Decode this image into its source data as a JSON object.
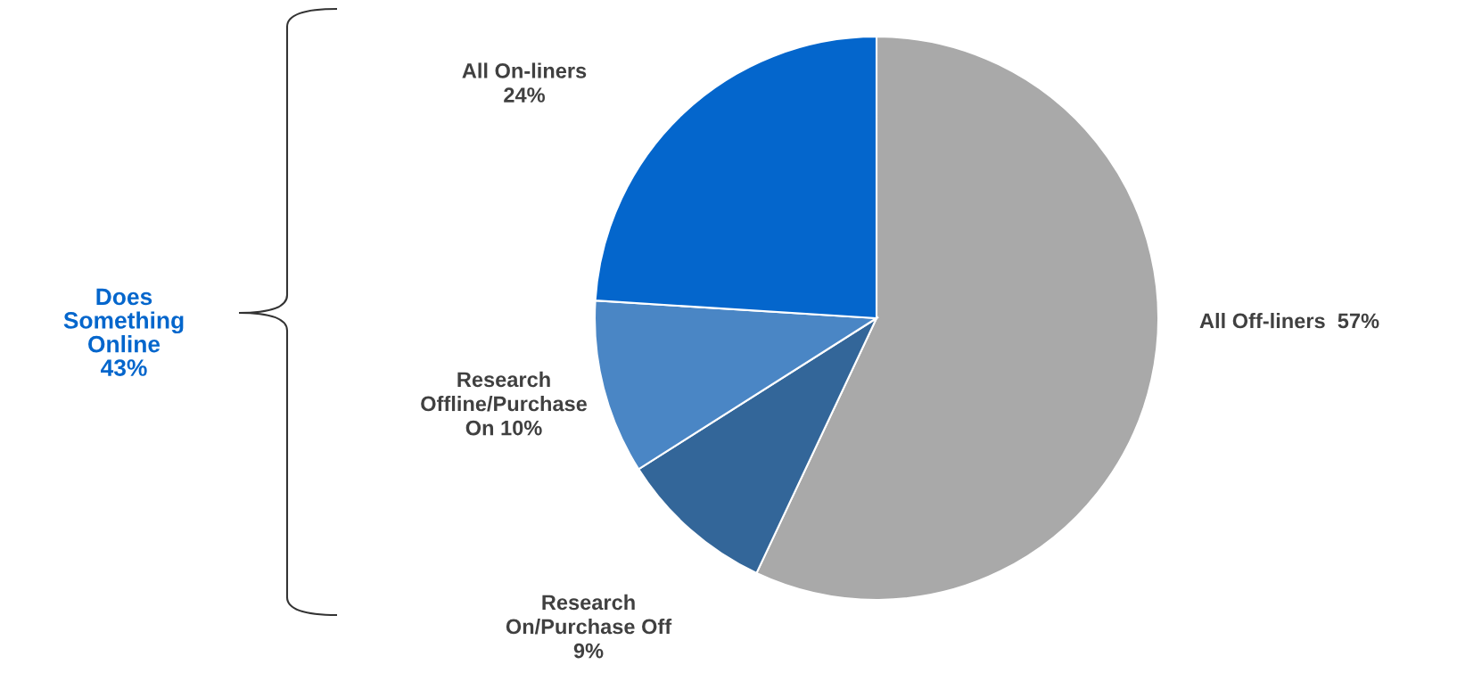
{
  "chart_data": {
    "type": "pie",
    "categories": [
      "All Off-liners",
      "Research On/Purchase Off",
      "Research Offline/Purchase On",
      "All On-liners"
    ],
    "values": [
      57,
      9,
      10,
      24
    ],
    "colors": [
      "#a9a9a9",
      "#336699",
      "#4a86c5",
      "#0466cc"
    ],
    "value_labels": [
      "57%",
      "9%",
      "10%",
      "24%"
    ],
    "annotations": [
      "Does\nSomething\nOnline\n43%"
    ]
  }
}
